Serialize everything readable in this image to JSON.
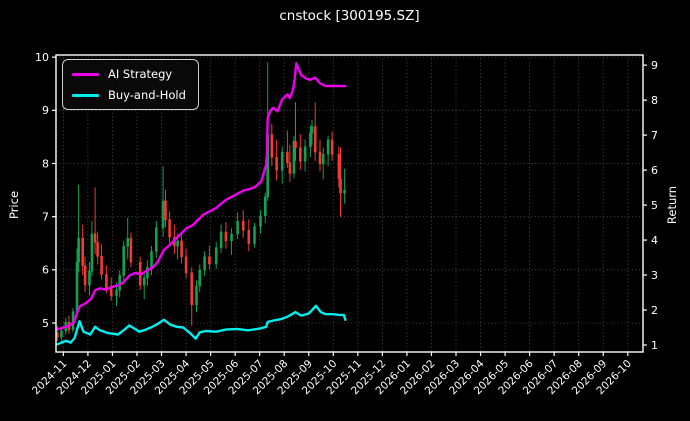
{
  "title": "cnstock [300195.SZ]",
  "chart_data": {
    "type": "candlestick+line",
    "title": "cnstock [300195.SZ]",
    "background": "#000000",
    "x_axis": {
      "tick_labels": [
        "2024-11",
        "2024-12",
        "2025-01",
        "2025-02",
        "2025-03",
        "2025-04",
        "2025-05",
        "2025-06",
        "2025-07",
        "2025-08",
        "2025-09",
        "2025-10",
        "2025-11",
        "2025-12",
        "2026-01",
        "2026-02",
        "2026-03",
        "2026-04",
        "2026-05",
        "2026-06",
        "2026-07",
        "2026-08",
        "2026-09",
        "2026-10"
      ],
      "rotation": -45,
      "range_months": [
        -0.3,
        23.62
      ]
    },
    "left_axis": {
      "label": "Price",
      "ticks": [
        5,
        6,
        7,
        8,
        9,
        10
      ],
      "range": [
        4.455,
        10.04
      ]
    },
    "right_axis": {
      "label": "Return",
      "ticks": [
        1,
        2,
        3,
        4,
        5,
        6,
        7,
        8,
        9
      ],
      "range": [
        0.8,
        9.29
      ]
    },
    "grid": {
      "show": true,
      "style": "dotted",
      "color": "#585858"
    },
    "candles": {
      "up_color": "#12a151",
      "down_color": "#f23b32",
      "ohlc": [
        [
          "2024-10-24",
          4.82,
          4.95,
          4.66,
          4.74
        ],
        [
          "2024-10-29",
          4.74,
          4.9,
          4.62,
          4.86
        ],
        [
          "2024-11-04",
          4.86,
          5.1,
          4.78,
          5.02
        ],
        [
          "2024-11-08",
          5.02,
          5.14,
          4.8,
          4.88
        ],
        [
          "2024-11-13",
          4.88,
          5.28,
          4.82,
          5.22
        ],
        [
          "2024-11-18",
          5.22,
          6.4,
          5.1,
          6.15
        ],
        [
          "2024-11-20",
          6.15,
          7.6,
          5.95,
          6.6
        ],
        [
          "2024-11-25",
          6.6,
          6.85,
          5.9,
          6.08
        ],
        [
          "2024-11-28",
          6.08,
          6.25,
          5.58,
          5.72
        ],
        [
          "2024-12-03",
          5.72,
          6.15,
          5.52,
          5.98
        ],
        [
          "2024-12-06",
          5.98,
          6.92,
          5.88,
          6.68
        ],
        [
          "2024-12-10",
          6.68,
          7.55,
          6.3,
          6.52
        ],
        [
          "2024-12-13",
          6.52,
          6.72,
          6.1,
          6.26
        ],
        [
          "2024-12-18",
          6.26,
          6.48,
          5.82,
          5.92
        ],
        [
          "2024-12-24",
          5.92,
          6.08,
          5.56,
          5.66
        ],
        [
          "2024-12-30",
          5.66,
          5.86,
          5.42,
          5.52
        ],
        [
          "2025-01-06",
          5.52,
          5.76,
          5.32,
          5.62
        ],
        [
          "2025-01-10",
          5.62,
          6.0,
          5.48,
          5.9
        ],
        [
          "2025-01-15",
          5.9,
          6.55,
          5.8,
          6.45
        ],
        [
          "2025-01-20",
          6.45,
          6.98,
          6.2,
          6.6
        ],
        [
          "2025-01-24",
          6.6,
          6.7,
          6.05,
          6.15
        ],
        [
          "2025-02-05",
          6.15,
          6.25,
          5.62,
          5.72
        ],
        [
          "2025-02-10",
          5.72,
          5.95,
          5.45,
          5.85
        ],
        [
          "2025-02-14",
          5.85,
          6.18,
          5.7,
          6.05
        ],
        [
          "2025-02-19",
          6.05,
          6.45,
          5.9,
          6.35
        ],
        [
          "2025-02-25",
          6.35,
          6.92,
          6.22,
          6.8
        ],
        [
          "2025-03-03",
          6.8,
          7.95,
          6.62,
          7.3
        ],
        [
          "2025-03-06",
          7.3,
          7.5,
          6.8,
          6.95
        ],
        [
          "2025-03-11",
          6.95,
          7.1,
          6.5,
          6.62
        ],
        [
          "2025-03-17",
          6.62,
          6.85,
          6.3,
          6.45
        ],
        [
          "2025-03-21",
          6.45,
          6.68,
          6.2,
          6.55
        ],
        [
          "2025-03-26",
          6.55,
          6.7,
          6.12,
          6.25
        ],
        [
          "2025-04-01",
          6.25,
          6.4,
          5.85,
          5.95
        ],
        [
          "2025-04-08",
          5.95,
          6.05,
          4.95,
          5.35
        ],
        [
          "2025-04-14",
          5.35,
          5.8,
          5.2,
          5.7
        ],
        [
          "2025-04-18",
          5.7,
          6.1,
          5.58,
          6.0
        ],
        [
          "2025-04-24",
          6.0,
          6.35,
          5.88,
          6.25
        ],
        [
          "2025-04-30",
          6.25,
          6.45,
          6.0,
          6.12
        ],
        [
          "2025-05-08",
          6.12,
          6.52,
          6.02,
          6.42
        ],
        [
          "2025-05-14",
          6.42,
          6.85,
          6.32,
          6.72
        ],
        [
          "2025-05-20",
          6.72,
          6.9,
          6.4,
          6.55
        ],
        [
          "2025-05-27",
          6.55,
          6.78,
          6.28,
          6.68
        ],
        [
          "2025-06-04",
          6.68,
          7.08,
          6.58,
          6.92
        ],
        [
          "2025-06-11",
          6.92,
          7.12,
          6.6,
          6.75
        ],
        [
          "2025-06-18",
          6.75,
          6.95,
          6.35,
          6.5
        ],
        [
          "2025-06-25",
          6.5,
          6.88,
          6.42,
          6.82
        ],
        [
          "2025-07-02",
          6.82,
          7.12,
          6.68,
          7.02
        ],
        [
          "2025-07-08",
          7.02,
          7.45,
          6.88,
          7.38
        ],
        [
          "2025-07-11",
          7.38,
          9.9,
          7.3,
          8.55
        ],
        [
          "2025-07-16",
          8.55,
          8.75,
          7.95,
          8.12
        ],
        [
          "2025-07-22",
          8.12,
          8.45,
          7.68,
          7.88
        ],
        [
          "2025-07-29",
          7.88,
          8.32,
          7.62,
          8.22
        ],
        [
          "2025-08-05",
          8.22,
          8.62,
          7.92,
          8.02
        ],
        [
          "2025-08-08",
          8.02,
          8.35,
          7.65,
          7.82
        ],
        [
          "2025-08-13",
          7.82,
          8.52,
          7.72,
          8.42
        ],
        [
          "2025-08-15",
          8.42,
          9.15,
          8.05,
          8.3
        ],
        [
          "2025-08-21",
          8.3,
          8.55,
          7.88,
          8.05
        ],
        [
          "2025-08-27",
          8.05,
          8.45,
          7.85,
          8.32
        ],
        [
          "2025-09-03",
          8.32,
          8.72,
          8.12,
          8.58
        ],
        [
          "2025-09-05",
          8.58,
          8.82,
          8.35,
          8.7
        ],
        [
          "2025-09-09",
          8.7,
          9.15,
          8.05,
          8.22
        ],
        [
          "2025-09-15",
          8.22,
          8.45,
          7.85,
          8.0
        ],
        [
          "2025-09-19",
          8.0,
          8.3,
          7.7,
          8.18
        ],
        [
          "2025-09-25",
          8.18,
          8.52,
          7.95,
          8.45
        ],
        [
          "2025-09-30",
          8.45,
          8.6,
          8.05,
          8.18
        ],
        [
          "2025-10-08",
          8.18,
          8.32,
          7.55,
          7.72
        ],
        [
          "2025-10-10",
          7.72,
          8.3,
          7.0,
          7.45
        ],
        [
          "2025-10-15",
          7.45,
          7.9,
          7.25,
          7.5
        ]
      ]
    },
    "series": [
      {
        "name": "AI Strategy",
        "color": "#ee00ee",
        "axis": "right",
        "points": [
          [
            "2024-10-24",
            1.45
          ],
          [
            "2024-11-01",
            1.5
          ],
          [
            "2024-11-08",
            1.55
          ],
          [
            "2024-11-14",
            1.65
          ],
          [
            "2024-11-19",
            1.98
          ],
          [
            "2024-11-22",
            2.12
          ],
          [
            "2024-11-28",
            2.18
          ],
          [
            "2024-12-05",
            2.32
          ],
          [
            "2024-12-10",
            2.56
          ],
          [
            "2024-12-16",
            2.62
          ],
          [
            "2024-12-23",
            2.58
          ],
          [
            "2024-12-31",
            2.66
          ],
          [
            "2025-01-08",
            2.7
          ],
          [
            "2025-01-15",
            2.8
          ],
          [
            "2025-01-22",
            2.98
          ],
          [
            "2025-01-29",
            3.06
          ],
          [
            "2025-02-06",
            3.02
          ],
          [
            "2025-02-13",
            3.12
          ],
          [
            "2025-02-20",
            3.2
          ],
          [
            "2025-02-27",
            3.38
          ],
          [
            "2025-03-04",
            3.72
          ],
          [
            "2025-03-11",
            3.86
          ],
          [
            "2025-03-18",
            4.02
          ],
          [
            "2025-03-25",
            4.18
          ],
          [
            "2025-04-02",
            4.35
          ],
          [
            "2025-04-09",
            4.42
          ],
          [
            "2025-04-15",
            4.56
          ],
          [
            "2025-04-22",
            4.72
          ],
          [
            "2025-04-30",
            4.82
          ],
          [
            "2025-05-08",
            4.92
          ],
          [
            "2025-05-15",
            5.06
          ],
          [
            "2025-05-22",
            5.18
          ],
          [
            "2025-05-29",
            5.26
          ],
          [
            "2025-06-05",
            5.34
          ],
          [
            "2025-06-12",
            5.42
          ],
          [
            "2025-06-19",
            5.46
          ],
          [
            "2025-06-26",
            5.52
          ],
          [
            "2025-07-03",
            5.68
          ],
          [
            "2025-07-09",
            6.15
          ],
          [
            "2025-07-10",
            6.45
          ],
          [
            "2025-07-11",
            7.5
          ],
          [
            "2025-07-15",
            7.72
          ],
          [
            "2025-07-18",
            7.78
          ],
          [
            "2025-07-23",
            7.68
          ],
          [
            "2025-07-29",
            8.02
          ],
          [
            "2025-08-05",
            8.16
          ],
          [
            "2025-08-08",
            8.06
          ],
          [
            "2025-08-12",
            8.3
          ],
          [
            "2025-08-14",
            8.62
          ],
          [
            "2025-08-16",
            9.05
          ],
          [
            "2025-08-19",
            8.88
          ],
          [
            "2025-08-22",
            8.72
          ],
          [
            "2025-08-28",
            8.62
          ],
          [
            "2025-09-03",
            8.58
          ],
          [
            "2025-09-09",
            8.64
          ],
          [
            "2025-09-15",
            8.48
          ],
          [
            "2025-09-22",
            8.4
          ],
          [
            "2025-10-16",
            8.4
          ]
        ]
      },
      {
        "name": "Buy-and-Hold",
        "color": "#00eeee",
        "axis": "right",
        "points": [
          [
            "2024-10-24",
            1.02
          ],
          [
            "2024-11-04",
            1.12
          ],
          [
            "2024-11-10",
            1.07
          ],
          [
            "2024-11-15",
            1.2
          ],
          [
            "2024-11-21",
            1.68
          ],
          [
            "2024-11-26",
            1.38
          ],
          [
            "2024-12-04",
            1.3
          ],
          [
            "2024-12-10",
            1.52
          ],
          [
            "2024-12-16",
            1.42
          ],
          [
            "2024-12-26",
            1.34
          ],
          [
            "2025-01-08",
            1.3
          ],
          [
            "2025-01-16",
            1.44
          ],
          [
            "2025-01-22",
            1.56
          ],
          [
            "2025-02-04",
            1.38
          ],
          [
            "2025-02-12",
            1.44
          ],
          [
            "2025-02-20",
            1.52
          ],
          [
            "2025-02-28",
            1.62
          ],
          [
            "2025-03-04",
            1.72
          ],
          [
            "2025-03-12",
            1.58
          ],
          [
            "2025-03-20",
            1.52
          ],
          [
            "2025-03-28",
            1.5
          ],
          [
            "2025-04-07",
            1.32
          ],
          [
            "2025-04-13",
            1.18
          ],
          [
            "2025-04-18",
            1.36
          ],
          [
            "2025-04-25",
            1.4
          ],
          [
            "2025-05-08",
            1.38
          ],
          [
            "2025-05-20",
            1.44
          ],
          [
            "2025-06-03",
            1.46
          ],
          [
            "2025-06-17",
            1.42
          ],
          [
            "2025-07-01",
            1.47
          ],
          [
            "2025-07-09",
            1.52
          ],
          [
            "2025-07-11",
            1.66
          ],
          [
            "2025-07-18",
            1.7
          ],
          [
            "2025-07-28",
            1.74
          ],
          [
            "2025-08-06",
            1.82
          ],
          [
            "2025-08-15",
            1.94
          ],
          [
            "2025-08-22",
            1.84
          ],
          [
            "2025-09-01",
            1.9
          ],
          [
            "2025-09-10",
            2.12
          ],
          [
            "2025-09-16",
            1.94
          ],
          [
            "2025-09-22",
            1.88
          ],
          [
            "2025-10-01",
            1.88
          ],
          [
            "2025-10-08",
            1.86
          ],
          [
            "2025-10-14",
            1.86
          ],
          [
            "2025-10-16",
            1.72
          ]
        ]
      }
    ]
  }
}
